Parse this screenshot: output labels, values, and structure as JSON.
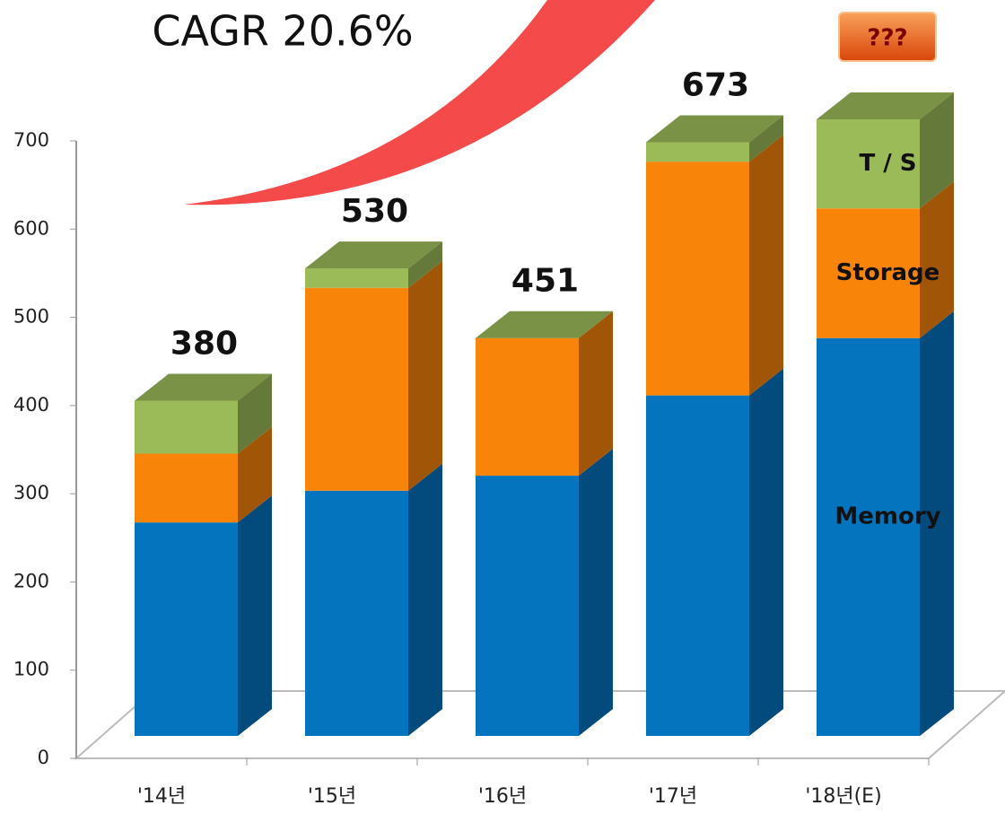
{
  "chart_data": {
    "type": "bar3d_stacked",
    "title": "CAGR 20.6%",
    "annotation": "???",
    "categories": [
      "'14년",
      "'15년",
      "'16년",
      "'17년",
      "'18년(E)"
    ],
    "series": [
      {
        "name": "Memory",
        "color": "#0474be",
        "values": [
          242,
          278,
          295,
          386,
          451
        ]
      },
      {
        "name": "Storage",
        "color": "#f8850a",
        "values": [
          78,
          230,
          156,
          265,
          147
        ]
      },
      {
        "name": "T / S",
        "color": "#9bbb59",
        "values": [
          60,
          22,
          0,
          22,
          101
        ]
      }
    ],
    "totals": [
      380,
      530,
      451,
      673,
      null
    ],
    "ylim": [
      0,
      700
    ],
    "yticks": [
      0,
      100,
      200,
      300,
      400,
      500,
      600,
      700
    ]
  }
}
